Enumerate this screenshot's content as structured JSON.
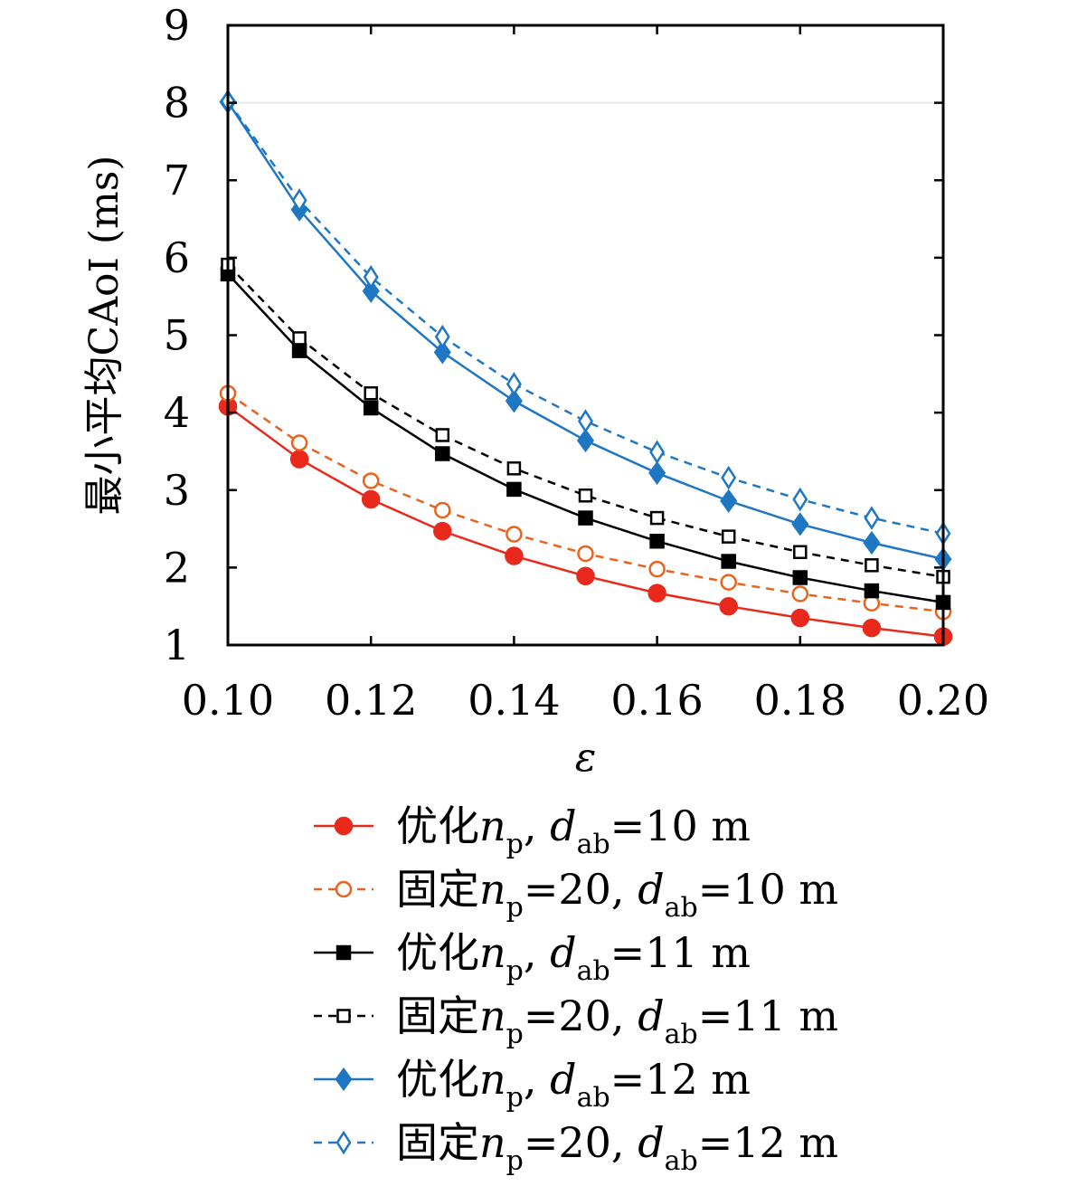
{
  "chart_data": {
    "type": "line",
    "title": "",
    "xlabel": "ε",
    "ylabel": "最小平均CAoI (ms)",
    "xlim": [
      0.1,
      0.2
    ],
    "ylim": [
      1,
      9
    ],
    "xticks": [
      0.1,
      0.12,
      0.14,
      0.16,
      0.18,
      0.2
    ],
    "xtick_labels": [
      "0.10",
      "0.12",
      "0.14",
      "0.16",
      "0.18",
      "0.20"
    ],
    "yticks": [
      1,
      2,
      3,
      4,
      5,
      6,
      7,
      8,
      9
    ],
    "ytick_labels": [
      "1",
      "2",
      "3",
      "4",
      "5",
      "6",
      "7",
      "8",
      "9"
    ],
    "grid": false,
    "legend_position": "below",
    "x": [
      0.1,
      0.11,
      0.12,
      0.13,
      0.14,
      0.15,
      0.16,
      0.17,
      0.18,
      0.19,
      0.2
    ],
    "series": [
      {
        "legend_prefix": "优化",
        "legend_n": "n",
        "legend_n_sub": "p",
        "legend_np_value": "",
        "legend_sep": ",",
        "legend_d": "d",
        "legend_d_sub": "ab",
        "legend_d_value": "=10 m",
        "color": "#e8291c",
        "dash": "solid",
        "marker": "circle-filled",
        "values": [
          4.08,
          3.4,
          2.88,
          2.47,
          2.15,
          1.89,
          1.67,
          1.5,
          1.35,
          1.22,
          1.11
        ]
      },
      {
        "legend_prefix": "固定",
        "legend_n": "n",
        "legend_n_sub": "p",
        "legend_np_value": "=20",
        "legend_sep": ",",
        "legend_d": "d",
        "legend_d_sub": "ab",
        "legend_d_value": "=10 m",
        "color": "#e8641e",
        "dash": "dashed",
        "marker": "circle-open",
        "values": [
          4.25,
          3.61,
          3.12,
          2.74,
          2.43,
          2.18,
          1.98,
          1.81,
          1.66,
          1.54,
          1.43
        ]
      },
      {
        "legend_prefix": "优化",
        "legend_n": "n",
        "legend_n_sub": "p",
        "legend_np_value": "",
        "legend_sep": ",",
        "legend_d": "d",
        "legend_d_sub": "ab",
        "legend_d_value": "=11 m",
        "color": "#000000",
        "dash": "solid",
        "marker": "square-filled",
        "values": [
          5.79,
          4.8,
          4.06,
          3.47,
          3.01,
          2.64,
          2.34,
          2.08,
          1.87,
          1.7,
          1.55
        ]
      },
      {
        "legend_prefix": "固定",
        "legend_n": "n",
        "legend_n_sub": "p",
        "legend_np_value": "=20",
        "legend_sep": ",",
        "legend_d": "d",
        "legend_d_sub": "ab",
        "legend_d_value": "=11 m",
        "color": "#000000",
        "dash": "dashed",
        "marker": "square-open",
        "values": [
          5.91,
          4.96,
          4.25,
          3.71,
          3.28,
          2.93,
          2.64,
          2.4,
          2.2,
          2.03,
          1.88
        ]
      },
      {
        "legend_prefix": "优化",
        "legend_n": "n",
        "legend_n_sub": "p",
        "legend_np_value": "",
        "legend_sep": ",",
        "legend_d": "d",
        "legend_d_sub": "ab",
        "legend_d_value": "=12 m",
        "color": "#1f77c4",
        "dash": "solid",
        "marker": "diamond-filled",
        "values": [
          8.01,
          6.62,
          5.57,
          4.78,
          4.15,
          3.64,
          3.22,
          2.86,
          2.56,
          2.32,
          2.11
        ]
      },
      {
        "legend_prefix": "固定",
        "legend_n": "n",
        "legend_n_sub": "p",
        "legend_np_value": "=20",
        "legend_sep": ",",
        "legend_d": "d",
        "legend_d_sub": "ab",
        "legend_d_value": "=12 m",
        "color": "#1f77c4",
        "dash": "dashed",
        "marker": "diamond-open",
        "values": [
          8.02,
          6.74,
          5.75,
          4.98,
          4.37,
          3.89,
          3.49,
          3.16,
          2.88,
          2.64,
          2.44
        ]
      }
    ]
  }
}
